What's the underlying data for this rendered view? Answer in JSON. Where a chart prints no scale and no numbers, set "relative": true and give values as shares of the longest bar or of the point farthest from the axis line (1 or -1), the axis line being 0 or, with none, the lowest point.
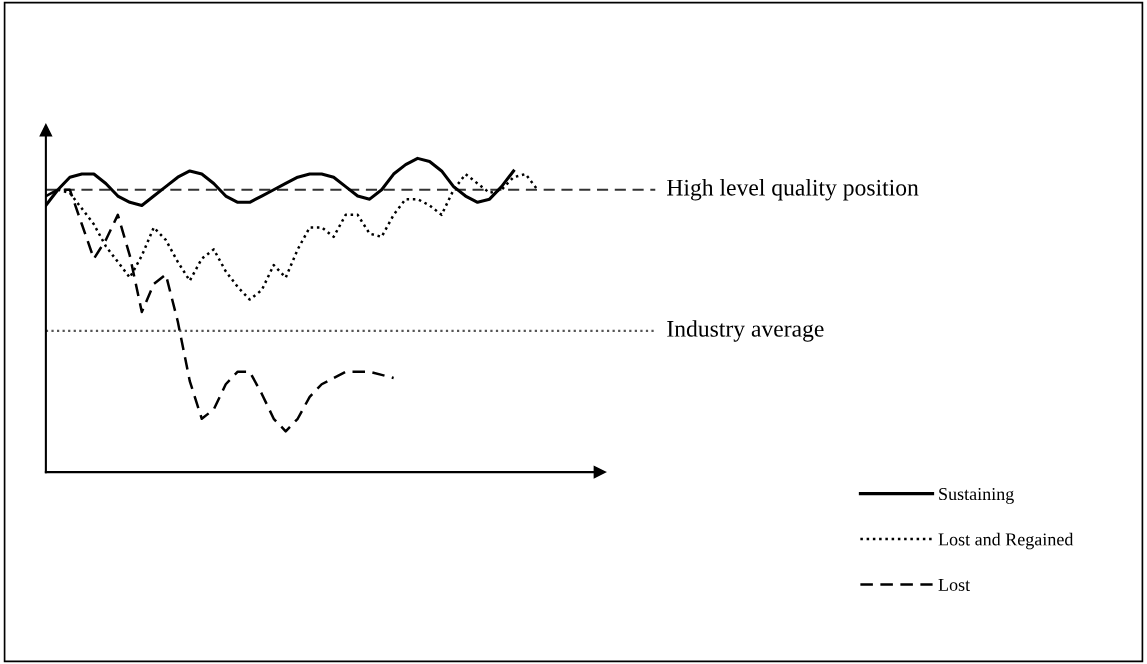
{
  "chart_data": {
    "type": "line",
    "relative": true,
    "legend": "bottom right",
    "marker": "none",
    "categories": [
      null,
      null,
      null,
      null,
      null,
      null,
      null,
      null,
      null,
      null,
      null,
      null,
      null,
      null,
      null,
      null,
      null,
      null,
      null,
      null,
      null,
      null,
      null,
      null,
      null,
      null,
      null,
      null,
      null,
      null,
      null,
      null,
      null,
      null,
      null,
      null,
      null,
      null,
      null,
      null,
      null,
      null,
      null
    ],
    "series": [
      {
        "name": "Sustaining",
        "color": "#000000",
        "line_style": "solid",
        "values": [
          0.85,
          0.9,
          0.94,
          0.95,
          0.95,
          0.92,
          0.88,
          0.86,
          0.85,
          0.88,
          0.91,
          0.94,
          0.96,
          0.95,
          0.92,
          0.88,
          0.86,
          0.86,
          0.88,
          0.9,
          0.92,
          0.94,
          0.95,
          0.95,
          0.94,
          0.91,
          0.88,
          0.87,
          0.9,
          0.95,
          0.98,
          1.0,
          0.99,
          0.96,
          0.91,
          0.88,
          0.86,
          0.87,
          0.91,
          0.96,
          null,
          null,
          null
        ]
      },
      {
        "name": "Lost and Regained",
        "color": "#000000",
        "line_style": "dotted",
        "values": [
          null,
          0.9,
          0.89,
          0.84,
          0.79,
          0.72,
          0.67,
          0.62,
          0.69,
          0.78,
          0.74,
          0.67,
          0.61,
          0.68,
          0.71,
          0.64,
          0.59,
          0.55,
          0.58,
          0.66,
          0.62,
          0.71,
          0.78,
          0.78,
          0.75,
          0.82,
          0.82,
          0.76,
          0.75,
          0.82,
          0.87,
          0.87,
          0.85,
          0.82,
          0.9,
          0.95,
          0.92,
          0.89,
          0.9,
          0.94,
          0.95,
          0.9,
          null
        ]
      },
      {
        "name": "Lost",
        "color": "#000000",
        "line_style": "dashed",
        "values": [
          0.88,
          0.9,
          0.9,
          0.79,
          0.68,
          0.74,
          0.82,
          0.69,
          0.51,
          0.6,
          0.63,
          0.48,
          0.29,
          0.17,
          0.2,
          0.28,
          0.32,
          0.32,
          0.25,
          0.17,
          0.13,
          0.17,
          0.24,
          0.28,
          0.3,
          0.32,
          0.32,
          0.32,
          0.31,
          0.3,
          null,
          null,
          null,
          null,
          null,
          null,
          null,
          null,
          null,
          null,
          null,
          null,
          null
        ]
      }
    ],
    "ref_lines": [
      {
        "axis": "y",
        "value": 0.9,
        "label": "High level quality position",
        "color": "#333333",
        "line_style": "dashed"
      },
      {
        "axis": "y",
        "value": 0.45,
        "label": "Industry average",
        "color": "#555555",
        "line_style": "dotted"
      }
    ]
  }
}
